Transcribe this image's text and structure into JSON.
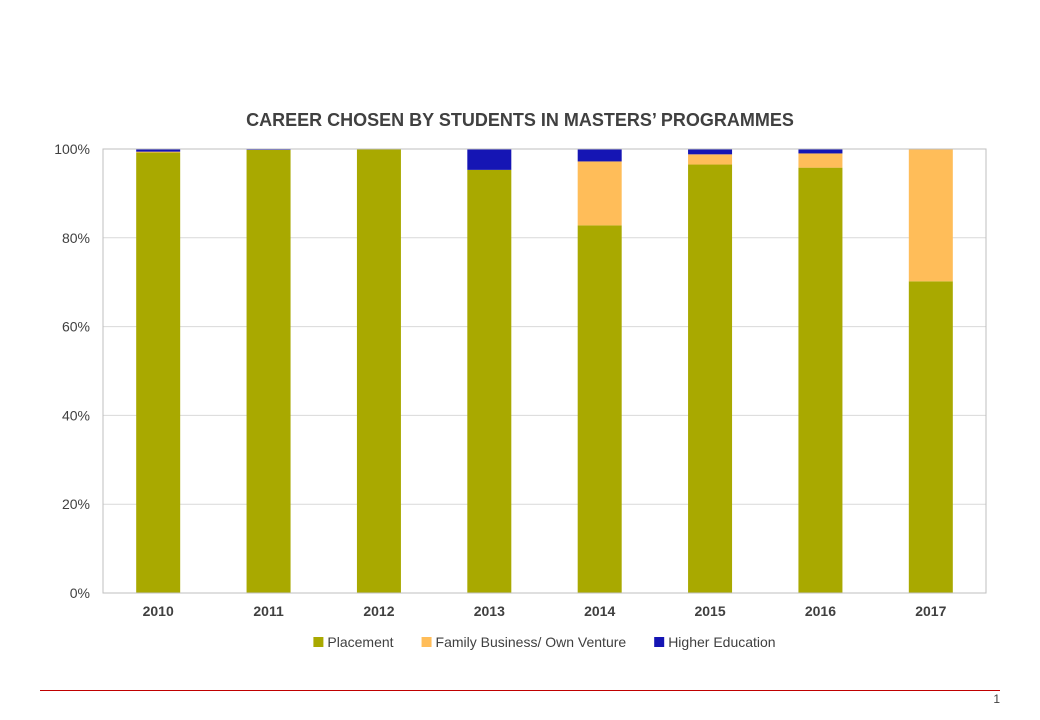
{
  "chart_data": {
    "type": "bar",
    "stacked": true,
    "percent_stacked": true,
    "title": "CAREER CHOSEN  BY STUDENTS  IN  MASTERS’ PROGRAMMES",
    "categories": [
      "2010",
      "2011",
      "2012",
      "2013",
      "2014",
      "2015",
      "2016",
      "2017"
    ],
    "series": [
      {
        "name": "Placement",
        "color": "#a9a900",
        "values": [
          99.2,
          99.8,
          100,
          95.3,
          82.8,
          96.5,
          95.8,
          70.2
        ]
      },
      {
        "name": "Family Business/ Own Venture",
        "color": "#ffbd59",
        "values": [
          0.2,
          0,
          0,
          0,
          14.4,
          2.3,
          3.2,
          29.8
        ]
      },
      {
        "name": "Higher Education",
        "color": "#1515b4",
        "values": [
          0.6,
          0.2,
          0,
          4.7,
          2.8,
          1.2,
          1.0,
          0
        ]
      }
    ],
    "ylim": [
      0,
      100
    ],
    "yticks": [
      "0%",
      "20%",
      "40%",
      "60%",
      "80%",
      "100%"
    ],
    "grid": true,
    "legend_position": "bottom"
  },
  "footer": {
    "page_number": "1"
  }
}
